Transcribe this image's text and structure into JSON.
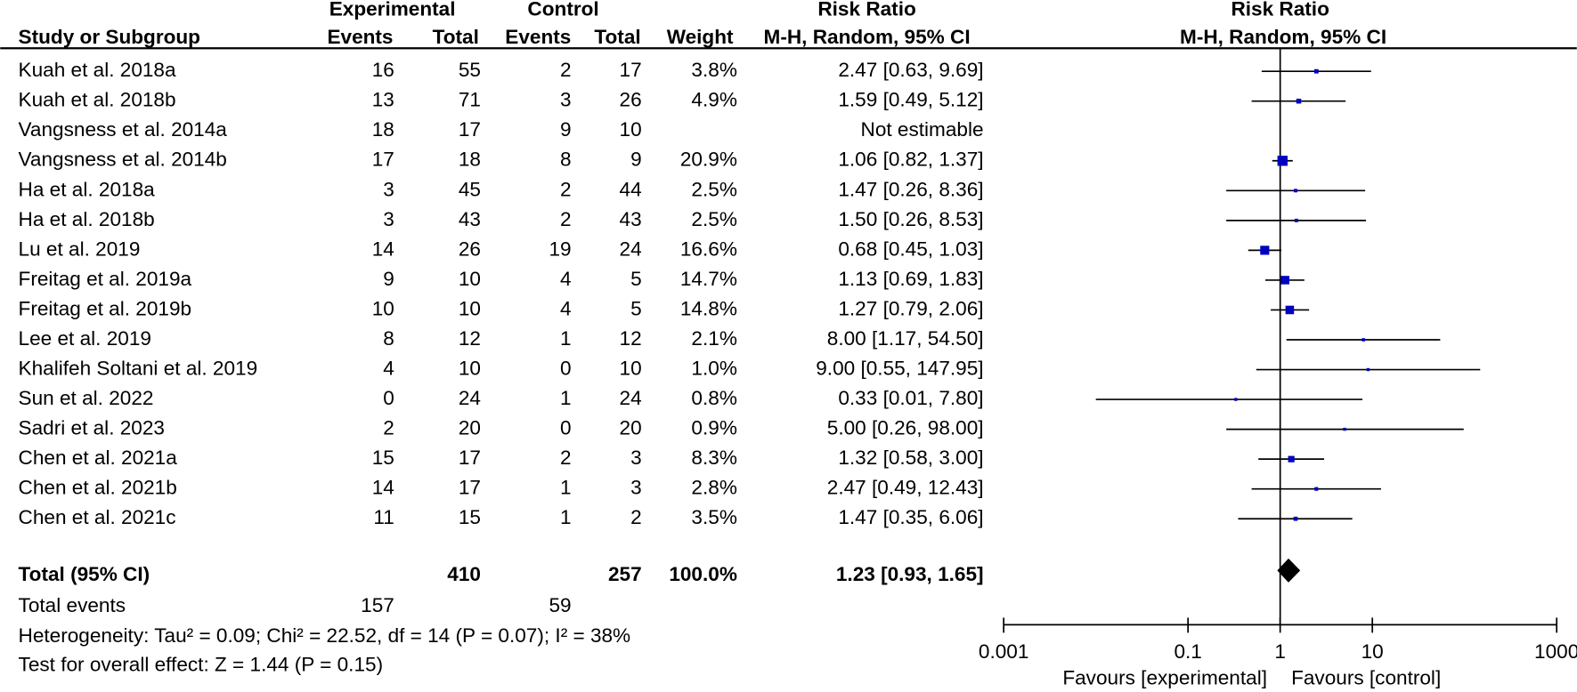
{
  "chart_data": {
    "type": "forest",
    "headers": {
      "group1": "Experimental",
      "group2": "Control",
      "rr_table": "Risk Ratio",
      "rr_plot": "Risk Ratio",
      "study": "Study or Subgroup",
      "events1": "Events",
      "total1": "Total",
      "events2": "Events",
      "total2": "Total",
      "weight": "Weight",
      "method_table": "M-H, Random, 95% CI",
      "method_plot": "M-H, Random, 95% CI"
    },
    "categories": [
      "Kuah et al. 2018a",
      "Kuah et al. 2018b",
      "Vangsness et al. 2014a",
      "Vangsness et al. 2014b",
      "Ha et al. 2018a",
      "Ha et al. 2018b",
      "Lu et al. 2019",
      "Freitag et al. 2019a",
      "Freitag et al. 2019b",
      "Lee et al. 2019",
      "Khalifeh Soltani et al. 2019",
      "Sun et al. 2022",
      "Sadri et al. 2023",
      "Chen et al. 2021a",
      "Chen et al. 2021b",
      "Chen et al. 2021c"
    ],
    "exp_events": [
      16,
      13,
      18,
      17,
      3,
      3,
      14,
      9,
      10,
      8,
      4,
      0,
      2,
      15,
      14,
      11
    ],
    "exp_totals": [
      55,
      71,
      17,
      18,
      45,
      43,
      26,
      10,
      10,
      12,
      10,
      24,
      20,
      17,
      17,
      15
    ],
    "ctrl_events": [
      2,
      3,
      9,
      8,
      2,
      2,
      19,
      4,
      4,
      1,
      0,
      1,
      0,
      2,
      1,
      1
    ],
    "ctrl_totals": [
      17,
      26,
      10,
      9,
      44,
      43,
      24,
      5,
      5,
      12,
      10,
      24,
      20,
      3,
      3,
      2
    ],
    "weights": [
      3.8,
      4.9,
      null,
      20.9,
      2.5,
      2.5,
      16.6,
      14.7,
      14.8,
      2.1,
      1.0,
      0.8,
      0.9,
      8.3,
      2.8,
      3.5
    ],
    "weight_labels": [
      "3.8%",
      "4.9%",
      null,
      "20.9%",
      "2.5%",
      "2.5%",
      "16.6%",
      "14.7%",
      "14.8%",
      "2.1%",
      "1.0%",
      "0.8%",
      "0.9%",
      "8.3%",
      "2.8%",
      "3.5%"
    ],
    "values": [
      2.47,
      1.59,
      null,
      1.06,
      1.47,
      1.5,
      0.68,
      1.13,
      1.27,
      8.0,
      9.0,
      0.33,
      5.0,
      1.32,
      2.47,
      1.47
    ],
    "ci_low": [
      0.63,
      0.49,
      null,
      0.82,
      0.26,
      0.26,
      0.45,
      0.69,
      0.79,
      1.17,
      0.55,
      0.01,
      0.26,
      0.58,
      0.49,
      0.35
    ],
    "ci_high": [
      9.69,
      5.12,
      null,
      1.37,
      8.36,
      8.53,
      1.03,
      1.83,
      2.06,
      54.5,
      147.95,
      7.8,
      98.0,
      3.0,
      12.43,
      6.06
    ],
    "value_labels": [
      "2.47 [0.63, 9.69]",
      "1.59 [0.49, 5.12]",
      "Not estimable",
      "1.06 [0.82, 1.37]",
      "1.47 [0.26, 8.36]",
      "1.50 [0.26, 8.53]",
      "0.68 [0.45, 1.03]",
      "1.13 [0.69, 1.83]",
      "1.27 [0.79, 2.06]",
      "8.00 [1.17, 54.50]",
      "9.00 [0.55, 147.95]",
      "0.33 [0.01, 7.80]",
      "5.00 [0.26, 98.00]",
      "1.32 [0.58, 3.00]",
      "2.47 [0.49, 12.43]",
      "1.47 [0.35, 6.06]"
    ],
    "color": "#0000c0",
    "total": {
      "name": "Total (95% CI)",
      "exp_total": 410,
      "ctrl_total": 257,
      "weight": 100.0,
      "weight_label": "100.0%",
      "value": 1.23,
      "ci_low": 0.93,
      "ci_high": 1.65,
      "value_label": "1.23 [0.93, 1.65]",
      "color": "#000000"
    },
    "total_events": {
      "label": "Total events",
      "exp": 157,
      "ctrl": 59
    },
    "heterogeneity": "Heterogeneity: Tau² = 0.09; Chi² = 22.52, df = 14 (P = 0.07); I² = 38%",
    "overall_effect": "Test for overall effect: Z = 1.44 (P = 0.15)",
    "x_scale": "log",
    "xlim": [
      0.001,
      1000
    ],
    "xticks": [
      0.001,
      0.1,
      1,
      10,
      1000
    ],
    "favours_left": "Favours [experimental]",
    "favours_right": "Favours [control]"
  }
}
